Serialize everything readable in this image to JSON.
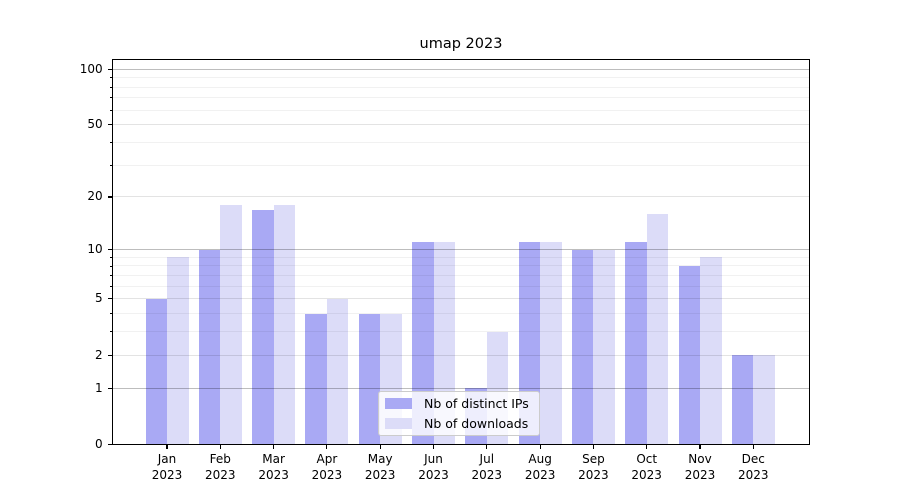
{
  "chart_data": {
    "type": "bar",
    "title": "umap 2023",
    "categories": [
      "Jan",
      "Feb",
      "Mar",
      "Apr",
      "May",
      "Jun",
      "Jul",
      "Aug",
      "Sep",
      "Oct",
      "Nov",
      "Dec"
    ],
    "category_year": "2023",
    "series": [
      {
        "name": "Nb of distinct IPs",
        "color": "#a9a9f4",
        "values": [
          5,
          10,
          17,
          4,
          4,
          11,
          1,
          11,
          10,
          11,
          8,
          2
        ]
      },
      {
        "name": "Nb of downloads",
        "color": "#dcdcf8",
        "values": [
          9,
          18,
          18,
          5,
          4,
          11,
          3,
          11,
          10,
          16,
          9,
          2
        ]
      }
    ],
    "yscale": "log1p",
    "ylim": [
      0,
      113
    ],
    "yticks_labeled": [
      0,
      1,
      2,
      5,
      10,
      20,
      50,
      100
    ],
    "yticks_decade": [
      1,
      10,
      100
    ],
    "yticks_mid": [
      2,
      5,
      20,
      50
    ],
    "yticks_minor": [
      3,
      4,
      6,
      7,
      8,
      9,
      30,
      40,
      60,
      70,
      80,
      90
    ],
    "grid": true,
    "legend_position": "lower center",
    "colors": {
      "grid_decade": "rgba(0,0,0,0.26)",
      "grid_mid": "rgba(0,0,0,0.11)",
      "grid_minor": "rgba(0,0,0,0.055)",
      "axis": "#000000",
      "legend_border": "#cccccc"
    }
  }
}
